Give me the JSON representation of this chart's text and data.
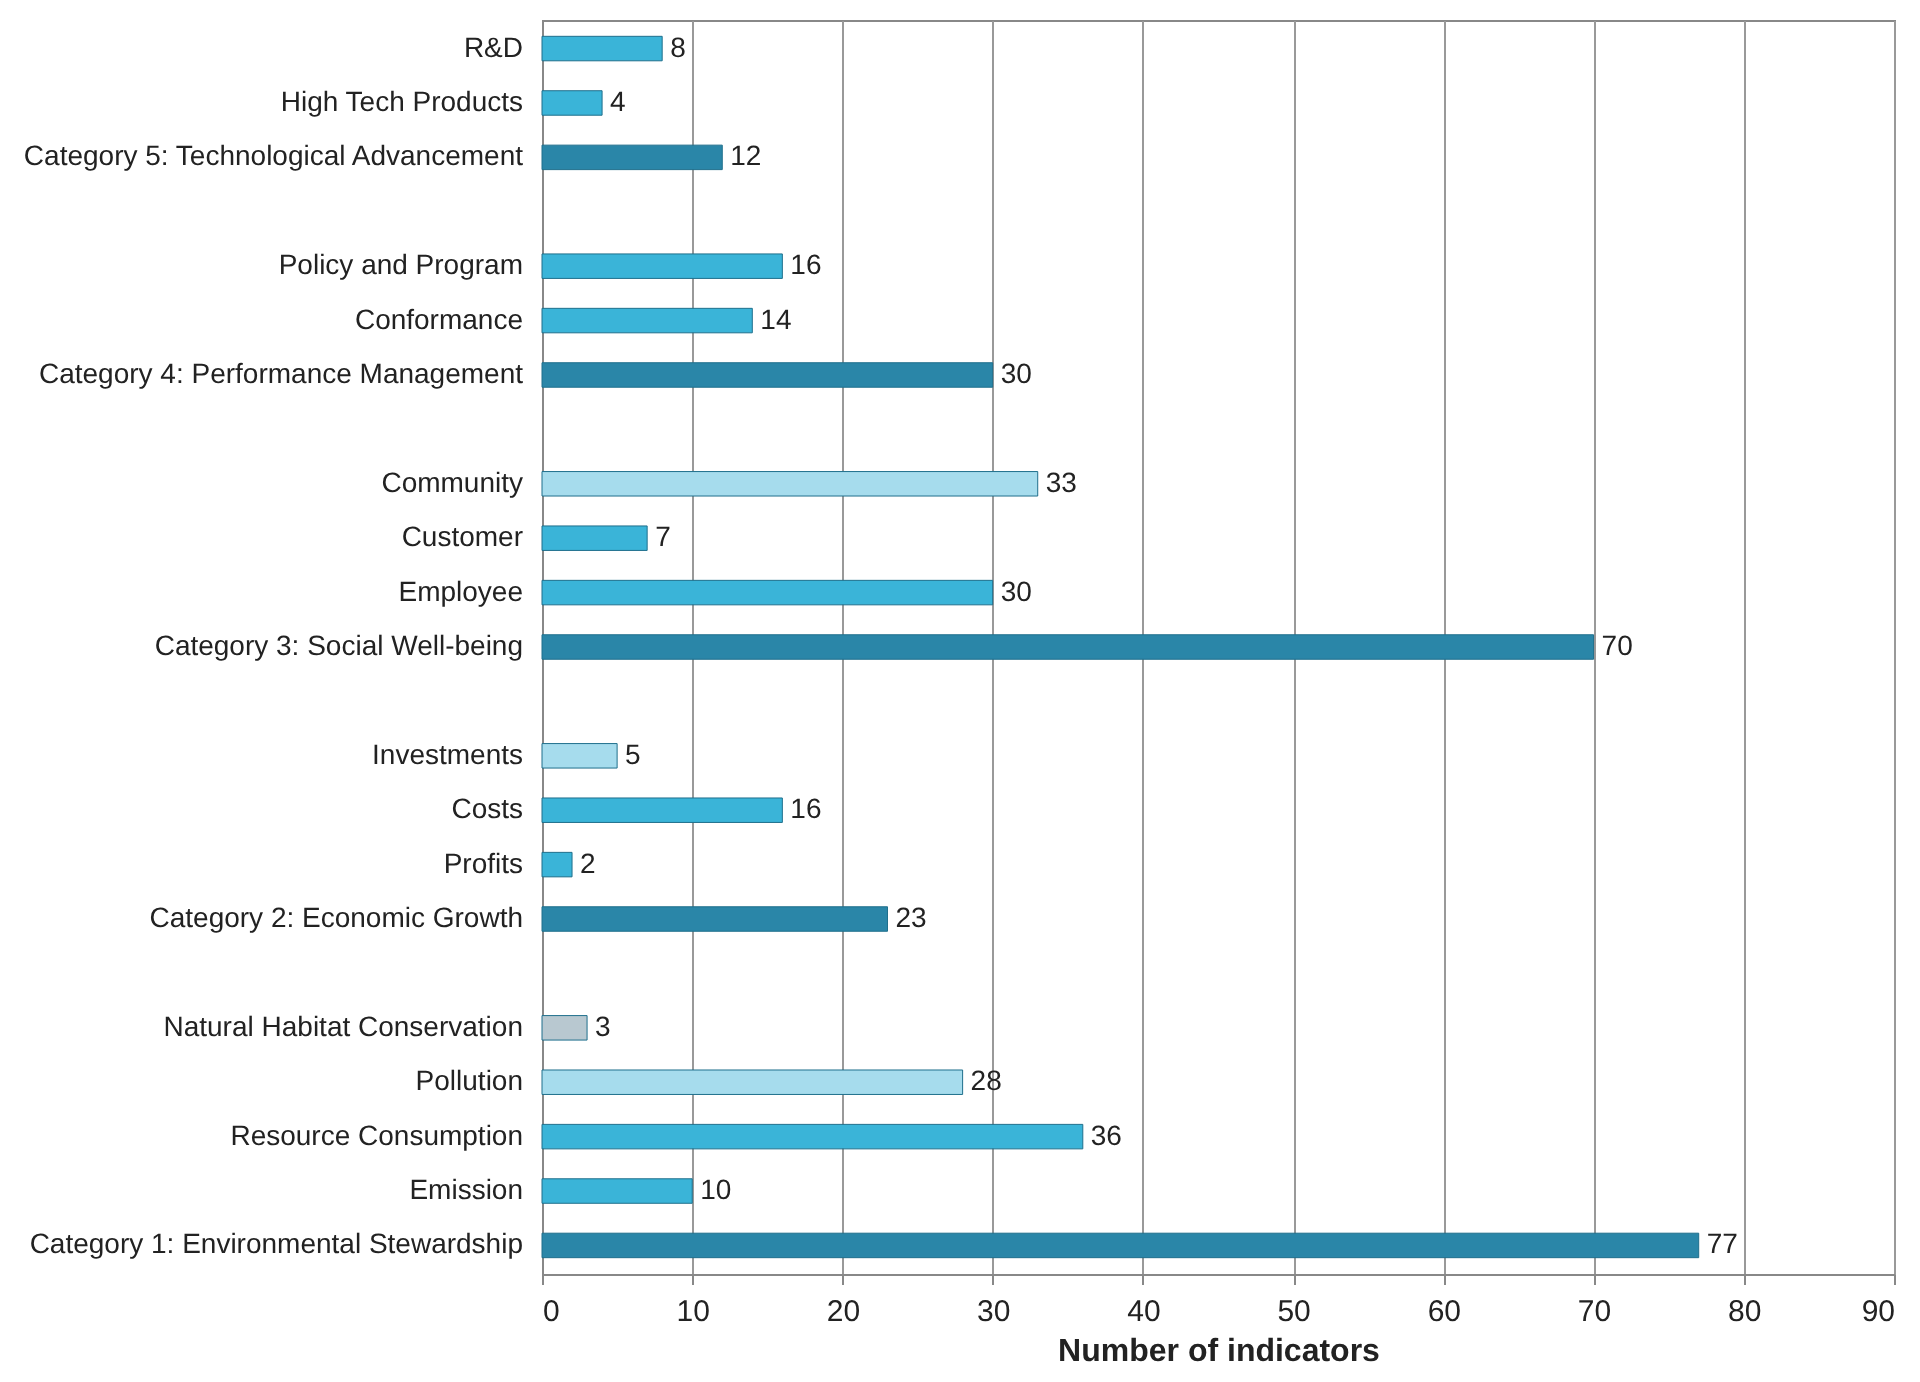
{
  "chart_data": {
    "type": "bar",
    "orientation": "horizontal",
    "xlabel": "Number of indicators",
    "categories": [
      "R&D",
      "High Tech Products",
      "Category 5: Technological Advancement",
      null,
      "Policy and Program",
      "Conformance",
      "Category 4: Performance Management",
      null,
      "Community",
      "Customer",
      "Employee",
      "Category 3: Social Well-being",
      null,
      "Investments",
      "Costs",
      "Profits",
      "Category 2: Economic Growth",
      null,
      "Natural Habitat Conservation",
      "Pollution",
      "Resource Consumption",
      "Emission",
      "Category 1: Environmental Stewardship"
    ],
    "values": [
      8,
      4,
      12,
      null,
      16,
      14,
      30,
      null,
      33,
      7,
      30,
      70,
      null,
      5,
      16,
      2,
      23,
      null,
      3,
      28,
      36,
      10,
      77
    ],
    "colors": [
      "#3ab4d8",
      "#3ab4d8",
      "#2a86a8",
      null,
      "#3ab4d8",
      "#3ab4d8",
      "#2a86a8",
      null,
      "#a6dced",
      "#3ab4d8",
      "#3ab4d8",
      "#2a86a8",
      null,
      "#a6dced",
      "#3ab4d8",
      "#3ab4d8",
      "#2a86a8",
      null,
      "#b8c8d0",
      "#a6dced",
      "#3ab4d8",
      "#3ab4d8",
      "#2a86a8"
    ],
    "xlim": [
      0,
      90
    ],
    "xticks": [
      0,
      10,
      20,
      30,
      40,
      50,
      60,
      70,
      80,
      90
    ],
    "grid": "x",
    "data_labels": true
  }
}
